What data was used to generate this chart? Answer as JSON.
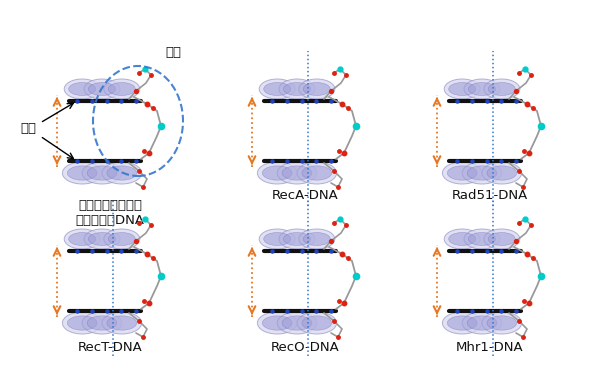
{
  "background_color": "#ffffff",
  "orange_color": "#e87722",
  "blue_dashed_color": "#3377cc",
  "dark_blue_color": "#2233aa",
  "panel_labels": [
    "タンパク質が結合\nしていないDNA",
    "RecA-DNA",
    "Rad51-DNA",
    "RecT-DNA",
    "RecO-DNA",
    "Mhr1-DNA"
  ],
  "sugar_label": "糖鎖",
  "base_label": "塩基",
  "label_fontsize": 9.5,
  "annot_fontsize": 9.5
}
